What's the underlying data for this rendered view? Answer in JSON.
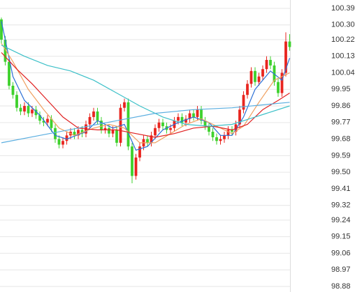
{
  "chart_data": {
    "type": "candlestick",
    "ylim": [
      98.88,
      100.39
    ],
    "yticks": [
      100.39,
      {
        "value": 100.3,
        "label": "100.30"
      },
      100.22,
      100.13,
      100.04,
      99.95,
      99.86,
      99.77,
      99.68,
      99.59,
      {
        "value": 99.5,
        "label": "99.50"
      },
      99.41,
      99.32,
      99.24,
      99.15,
      99.06,
      98.97,
      98.88
    ],
    "grid": true,
    "up_color": "#e8251f",
    "down_color": "#3ed12c",
    "open": [
      100.33,
      100.22,
      100.1,
      99.97,
      99.92,
      99.85,
      99.83,
      99.86,
      99.82,
      99.84,
      99.81,
      99.78,
      99.77,
      99.79,
      99.74,
      99.68,
      99.65,
      99.67,
      99.7,
      99.72,
      99.7,
      99.73,
      99.71,
      99.76,
      99.8,
      99.83,
      99.78,
      99.73,
      99.74,
      99.71,
      99.73,
      99.66,
      99.85,
      99.88,
      99.64,
      99.48,
      99.58,
      99.64,
      99.68,
      99.66,
      99.7,
      99.74,
      99.77,
      99.75,
      99.73,
      99.74,
      99.78,
      99.8,
      99.77,
      99.79,
      99.82,
      99.8,
      99.84,
      99.78,
      99.75,
      99.72,
      99.69,
      99.67,
      99.68,
      99.7,
      99.73,
      99.72,
      99.76,
      99.84,
      99.92,
      99.98,
      100.05,
      99.99,
      100.02,
      100.06,
      100.11,
      100.08,
      99.99,
      99.93,
      100.04,
      100.21
    ],
    "high": [
      100.34,
      100.24,
      100.12,
      99.99,
      99.94,
      99.87,
      99.88,
      99.88,
      99.86,
      99.86,
      99.83,
      99.8,
      99.81,
      99.81,
      99.76,
      99.7,
      99.69,
      99.72,
      99.74,
      99.74,
      99.75,
      99.75,
      99.78,
      99.82,
      99.85,
      99.85,
      99.8,
      99.76,
      99.76,
      99.75,
      99.75,
      99.87,
      99.9,
      99.9,
      99.66,
      99.6,
      99.66,
      99.7,
      99.7,
      99.72,
      99.76,
      99.79,
      99.79,
      99.77,
      99.76,
      99.8,
      99.82,
      99.82,
      99.81,
      99.84,
      99.84,
      99.86,
      99.86,
      99.8,
      99.77,
      99.74,
      99.71,
      99.7,
      99.72,
      99.75,
      99.75,
      99.78,
      99.86,
      99.94,
      100.0,
      100.07,
      100.07,
      100.04,
      100.08,
      100.13,
      100.13,
      100.1,
      100.01,
      100.06,
      100.26,
      100.25
    ],
    "low": [
      100.2,
      100.08,
      99.95,
      99.9,
      99.83,
      99.81,
      99.81,
      99.8,
      99.8,
      99.79,
      99.76,
      99.75,
      99.75,
      99.72,
      99.66,
      99.63,
      99.63,
      99.65,
      99.68,
      99.68,
      99.68,
      99.69,
      99.69,
      99.74,
      99.78,
      99.76,
      99.71,
      99.71,
      99.69,
      99.69,
      99.64,
      99.64,
      99.83,
      99.62,
      99.44,
      99.46,
      99.56,
      99.62,
      99.64,
      99.64,
      99.68,
      99.72,
      99.73,
      99.71,
      99.71,
      99.72,
      99.76,
      99.75,
      99.75,
      99.77,
      99.78,
      99.78,
      99.76,
      99.73,
      99.7,
      99.67,
      99.65,
      99.65,
      99.66,
      99.68,
      99.7,
      99.7,
      99.74,
      99.82,
      99.9,
      99.96,
      99.97,
      99.97,
      100.0,
      100.04,
      100.06,
      99.97,
      99.91,
      99.91,
      100.02,
      100.16
    ],
    "close": [
      100.22,
      100.1,
      99.97,
      99.92,
      99.85,
      99.83,
      99.86,
      99.82,
      99.84,
      99.81,
      99.78,
      99.77,
      99.79,
      99.74,
      99.68,
      99.65,
      99.67,
      99.7,
      99.72,
      99.7,
      99.73,
      99.71,
      99.76,
      99.8,
      99.83,
      99.78,
      99.73,
      99.74,
      99.71,
      99.73,
      99.66,
      99.85,
      99.88,
      99.64,
      99.48,
      99.58,
      99.64,
      99.68,
      99.66,
      99.7,
      99.74,
      99.77,
      99.75,
      99.73,
      99.74,
      99.78,
      99.8,
      99.77,
      99.79,
      99.82,
      99.8,
      99.84,
      99.78,
      99.75,
      99.72,
      99.69,
      99.67,
      99.68,
      99.7,
      99.73,
      99.72,
      99.76,
      99.84,
      99.92,
      99.98,
      100.05,
      99.99,
      100.02,
      100.06,
      100.11,
      100.08,
      99.99,
      99.93,
      100.04,
      100.21,
      100.18
    ],
    "lines": [
      {
        "color": "#2b6fd6",
        "x": [
          0,
          3,
          6,
          10,
          14,
          17,
          22,
          25,
          29,
          32,
          35,
          38,
          42,
          46,
          50,
          54,
          57,
          60,
          63,
          66,
          70,
          73,
          75
        ],
        "values": [
          100.32,
          100.02,
          99.89,
          99.81,
          99.7,
          99.68,
          99.72,
          99.78,
          99.74,
          99.76,
          99.62,
          99.64,
          99.73,
          99.77,
          99.8,
          99.77,
          99.7,
          99.7,
          99.8,
          99.95,
          100.05,
          100.0,
          100.12
        ]
      },
      {
        "color": "#f0a060",
        "x": [
          0,
          3,
          7,
          11,
          15,
          19,
          24,
          28,
          32,
          36,
          40,
          44,
          48,
          52,
          56,
          60,
          63,
          67,
          71,
          75
        ],
        "values": [
          100.2,
          100.1,
          99.95,
          99.84,
          99.74,
          99.7,
          99.74,
          99.76,
          99.74,
          99.66,
          99.66,
          99.71,
          99.76,
          99.79,
          99.75,
          99.71,
          99.75,
          99.88,
          100.0,
          100.04
        ]
      },
      {
        "color": "#e02020",
        "x": [
          0,
          4,
          8,
          12,
          16,
          20,
          25,
          30,
          35,
          40,
          45,
          50,
          55,
          60,
          64,
          68,
          72,
          75
        ],
        "values": [
          100.15,
          100.06,
          99.98,
          99.89,
          99.8,
          99.74,
          99.73,
          99.73,
          99.71,
          99.69,
          99.71,
          99.74,
          99.75,
          99.73,
          99.76,
          99.84,
          99.89,
          99.93
        ]
      },
      {
        "color": "#3cc0c8",
        "x": [
          0,
          6,
          12,
          18,
          24,
          30,
          36,
          42,
          48,
          54,
          60,
          66,
          75
        ],
        "values": [
          100.19,
          100.13,
          100.08,
          100.05,
          100.0,
          99.93,
          99.86,
          99.8,
          99.76,
          99.75,
          99.76,
          99.8,
          99.86
        ]
      },
      {
        "color": "#5aaee0",
        "x": [
          0,
          10,
          20,
          30,
          40,
          50,
          60,
          70,
          75
        ],
        "values": [
          99.66,
          99.7,
          99.74,
          99.78,
          99.82,
          99.84,
          99.85,
          99.87,
          99.88
        ]
      }
    ]
  }
}
